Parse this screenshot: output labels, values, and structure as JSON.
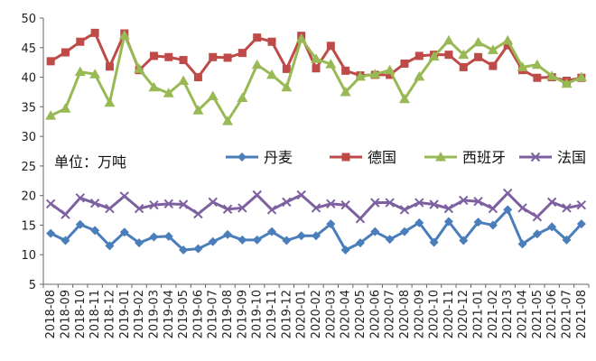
{
  "chart_data": {
    "type": "line",
    "unit_label": "单位：万吨",
    "x": [
      "2018-08",
      "2018-09",
      "2018-10",
      "2018-11",
      "2018-12",
      "2019-01",
      "2019-02",
      "2019-03",
      "2019-04",
      "2019-05",
      "2019-06",
      "2019-07",
      "2019-08",
      "2019-09",
      "2019-10",
      "2019-11",
      "2019-12",
      "2020-01",
      "2020-02",
      "2020-03",
      "2020-04",
      "2020-05",
      "2020-06",
      "2020-07",
      "2020-08",
      "2020-09",
      "2020-10",
      "2020-11",
      "2020-12",
      "2021-01",
      "2021-02",
      "2021-03",
      "2021-04",
      "2021-05",
      "2021-06",
      "2021-07",
      "2021-08"
    ],
    "ylim": [
      5,
      50
    ],
    "yticks": [
      5,
      10,
      15,
      20,
      25,
      30,
      35,
      40,
      45,
      50
    ],
    "grid": false,
    "legend_placement": "middle-right",
    "series": [
      {
        "name": "丹麦",
        "color": "#4a7ebb",
        "marker": "diamond",
        "values": [
          13.6,
          12.4,
          15.1,
          14.1,
          11.5,
          13.8,
          12.0,
          13.0,
          13.1,
          10.8,
          11.0,
          12.2,
          13.4,
          12.5,
          12.5,
          13.9,
          12.4,
          13.2,
          13.2,
          15.2,
          10.8,
          12.0,
          13.9,
          12.6,
          13.9,
          15.4,
          12.1,
          15.6,
          12.4,
          15.5,
          15.0,
          17.6,
          11.8,
          13.5,
          14.7,
          12.5,
          15.2
        ]
      },
      {
        "name": "德国",
        "color": "#be4b48",
        "marker": "square",
        "values": [
          42.7,
          44.2,
          46.0,
          47.5,
          41.8,
          47.4,
          41.2,
          43.6,
          43.4,
          42.9,
          40.0,
          43.4,
          43.3,
          44.1,
          46.7,
          46.0,
          41.4,
          47.0,
          41.5,
          45.3,
          41.1,
          40.3,
          40.4,
          40.4,
          42.3,
          43.6,
          43.8,
          43.8,
          41.7,
          43.4,
          41.9,
          45.4,
          41.2,
          39.9,
          40.0,
          39.4,
          39.9
        ]
      },
      {
        "name": "西班牙",
        "color": "#98b954",
        "marker": "triangle",
        "values": [
          33.5,
          34.7,
          40.9,
          40.5,
          35.7,
          47.1,
          41.4,
          38.3,
          37.3,
          39.4,
          34.4,
          36.8,
          32.6,
          36.5,
          42.1,
          40.4,
          38.3,
          46.5,
          43.1,
          42.2,
          37.5,
          40.1,
          40.5,
          41.2,
          36.3,
          40.1,
          43.5,
          46.2,
          43.8,
          45.9,
          44.6,
          46.2,
          41.7,
          42.1,
          40.2,
          38.9,
          40.0
        ]
      },
      {
        "name": "法国",
        "color": "#7d60a0",
        "marker": "x",
        "values": [
          18.6,
          16.8,
          19.6,
          18.7,
          17.8,
          19.9,
          17.8,
          18.4,
          18.6,
          18.5,
          16.9,
          18.9,
          17.7,
          17.9,
          20.1,
          17.6,
          18.9,
          20.1,
          17.9,
          18.6,
          18.4,
          16.1,
          18.8,
          18.8,
          17.6,
          18.8,
          18.5,
          17.8,
          19.2,
          19.0,
          17.8,
          20.4,
          17.9,
          16.4,
          18.9,
          17.9,
          18.4
        ]
      }
    ]
  }
}
